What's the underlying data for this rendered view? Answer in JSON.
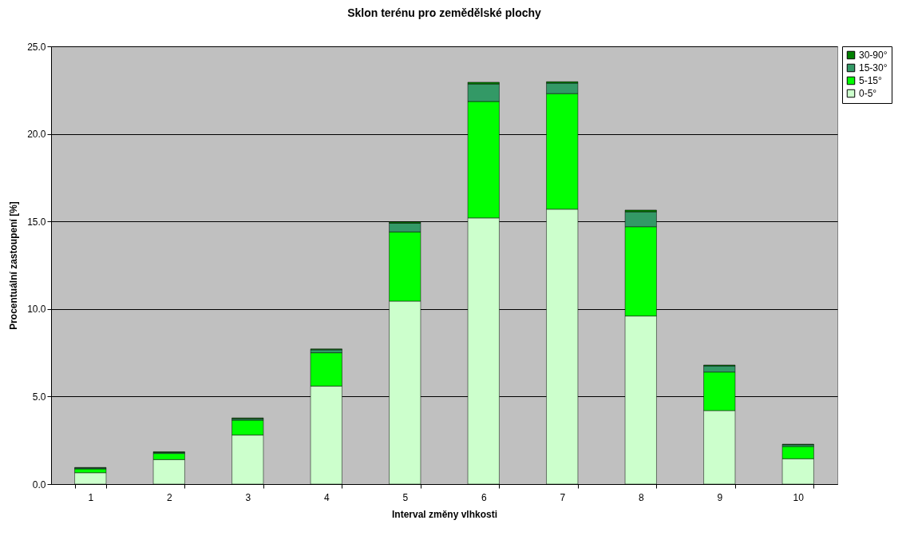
{
  "chart_data": {
    "type": "bar",
    "title": "Sklon terénu pro zemědělské plochy",
    "xlabel": "Interval změny vlhkosti",
    "ylabel": "Procentuální zastoupení [%]",
    "categories": [
      "1",
      "2",
      "3",
      "4",
      "5",
      "6",
      "7",
      "8",
      "9",
      "10"
    ],
    "stacked": true,
    "series": [
      {
        "name": "0-5°",
        "color": "#ccffcc",
        "values": [
          0.65,
          1.4,
          2.8,
          5.6,
          10.45,
          15.2,
          15.7,
          9.6,
          4.2,
          1.45
        ]
      },
      {
        "name": "5-15°",
        "color": "#00ff00",
        "values": [
          0.22,
          0.35,
          0.85,
          1.9,
          3.95,
          6.65,
          6.6,
          5.1,
          2.2,
          0.7
        ]
      },
      {
        "name": "15-30°",
        "color": "#339966",
        "values": [
          0.05,
          0.05,
          0.08,
          0.17,
          0.5,
          1.0,
          0.6,
          0.85,
          0.35,
          0.1
        ]
      },
      {
        "name": "30-90°",
        "color": "#008000",
        "values": [
          0.03,
          0.05,
          0.05,
          0.05,
          0.07,
          0.1,
          0.08,
          0.1,
          0.05,
          0.03
        ]
      }
    ],
    "ylim": [
      0,
      25
    ],
    "yticks": [
      {
        "value": 0,
        "label": "0.0"
      },
      {
        "value": 5,
        "label": "5.0"
      },
      {
        "value": 10,
        "label": "10.0"
      },
      {
        "value": 15,
        "label": "15.0"
      },
      {
        "value": 20,
        "label": "20.0"
      },
      {
        "value": 25,
        "label": "25.0"
      }
    ],
    "grid": "y",
    "legend": "right"
  }
}
